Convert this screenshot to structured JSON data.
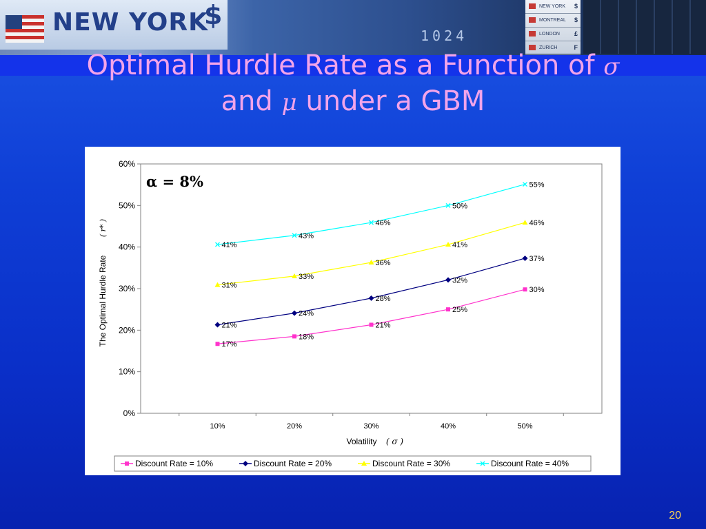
{
  "slide": {
    "title_line1": "Optimal Hurdle Rate as a Function of",
    "title_sym1": "σ",
    "title_and": "and",
    "title_sym2": "μ",
    "title_rest": "under a GBM",
    "page_number": "20"
  },
  "banner": {
    "city": "NEW YORK",
    "currency_sign": "$",
    "board_digits": "1024",
    "board_rows": [
      {
        "city": "NEW YORK",
        "symbol": "$"
      },
      {
        "city": "MONTREAL",
        "symbol": "$"
      },
      {
        "city": "LONDON",
        "symbol": "£"
      },
      {
        "city": "ZURICH",
        "symbol": "F"
      }
    ]
  },
  "chart_data": {
    "type": "line",
    "annotation": "α = 8%",
    "xlabel": "Volatility",
    "xlabel_sym": "( σ )",
    "ylabel": "The Optimal Hurdle Rate",
    "ylabel_sym": "( r* )",
    "categories": [
      "10%",
      "20%",
      "30%",
      "40%",
      "50%"
    ],
    "ylim": [
      0,
      60
    ],
    "yticks": [
      0,
      10,
      20,
      30,
      40,
      50,
      60
    ],
    "ytick_labels": [
      "0%",
      "10%",
      "20%",
      "30%",
      "40%",
      "50%",
      "60%"
    ],
    "legend_position": "bottom",
    "series": [
      {
        "name": "Discount Rate = 10%",
        "values": [
          16.7,
          18.5,
          21.3,
          25.0,
          29.8
        ],
        "labels": [
          "17%",
          "18%",
          "21%",
          "25%",
          "30%"
        ],
        "color": "#ff33cc",
        "marker": "square"
      },
      {
        "name": "Discount Rate = 20%",
        "values": [
          21.3,
          24.1,
          27.7,
          32.1,
          37.3
        ],
        "labels": [
          "21%",
          "24%",
          "28%",
          "32%",
          "37%"
        ],
        "color": "#000080",
        "marker": "diamond"
      },
      {
        "name": "Discount Rate = 30%",
        "values": [
          30.9,
          33.0,
          36.3,
          40.6,
          45.9
        ],
        "labels": [
          "31%",
          "33%",
          "36%",
          "41%",
          "46%"
        ],
        "color": "#ffff00",
        "marker": "triangle"
      },
      {
        "name": "Discount Rate = 40%",
        "values": [
          40.6,
          42.8,
          45.9,
          50.0,
          55.1
        ],
        "labels": [
          "41%",
          "43%",
          "46%",
          "50%",
          "55%"
        ],
        "color": "#00ffff",
        "marker": "x"
      }
    ]
  }
}
